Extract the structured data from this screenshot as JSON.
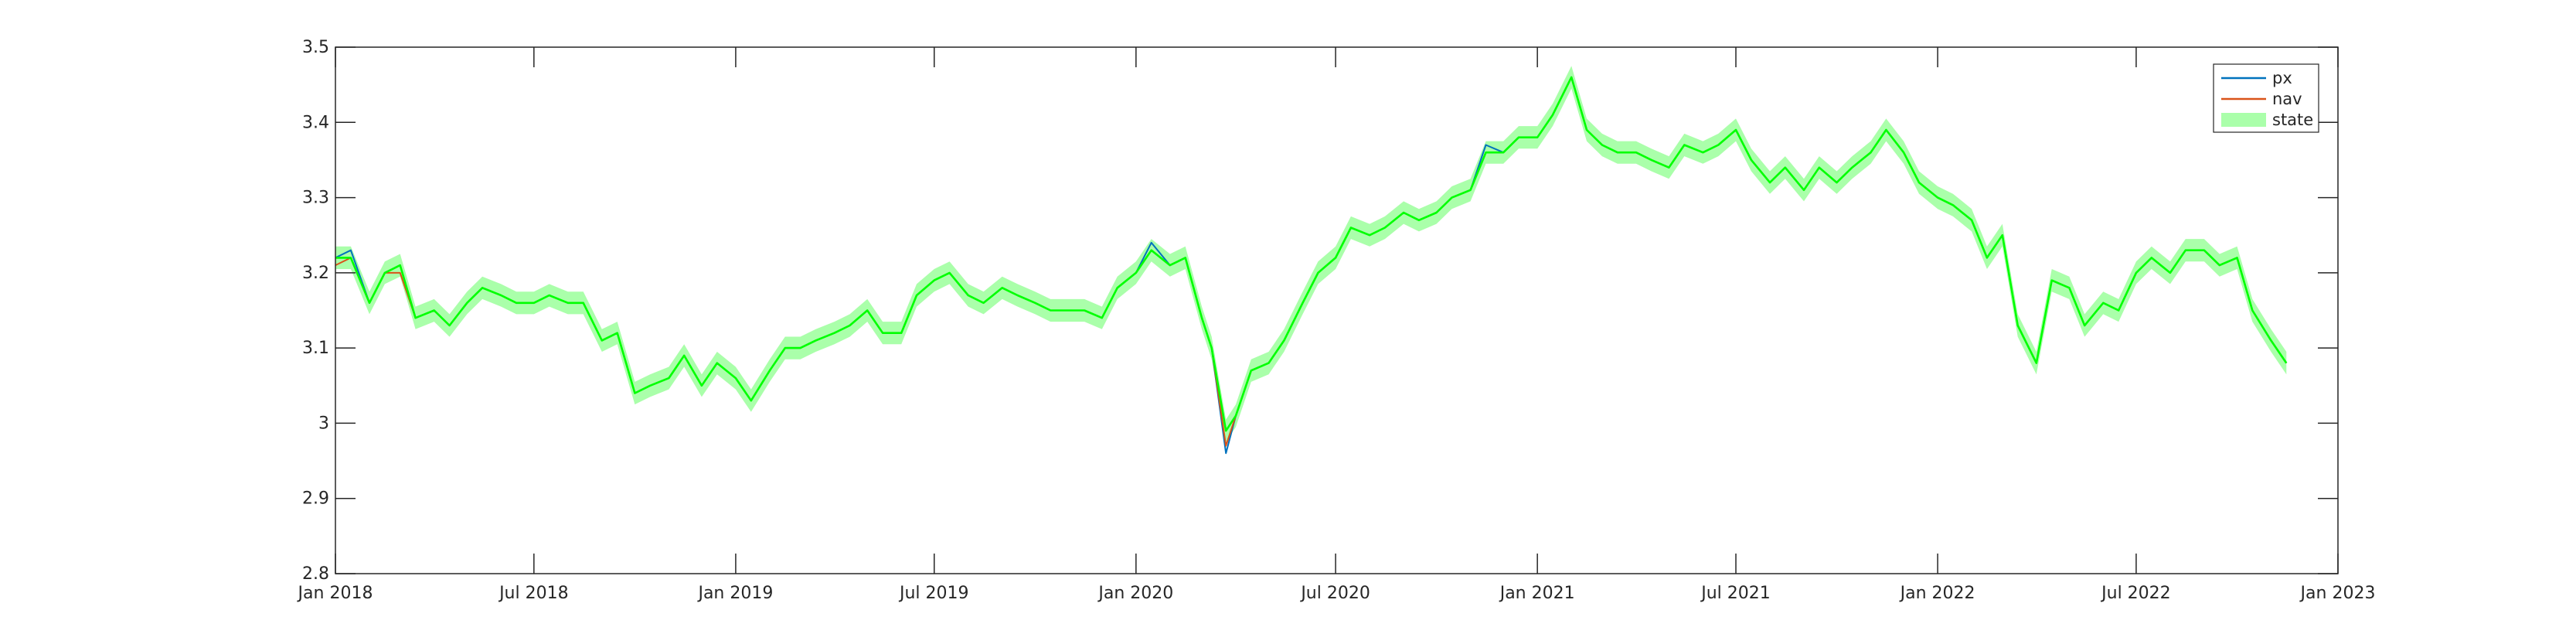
{
  "chart_data": {
    "type": "line",
    "title": "",
    "xlabel": "",
    "ylabel": "",
    "xlim": [
      "2018-01-01",
      "2023-01-01"
    ],
    "ylim": [
      2.8,
      3.5
    ],
    "x_ticks": [
      "2018-01-01",
      "2018-07-01",
      "2019-01-01",
      "2019-07-01",
      "2020-01-01",
      "2020-07-01",
      "2021-01-01",
      "2021-07-01",
      "2022-01-01",
      "2022-07-01",
      "2023-01-01"
    ],
    "x_tick_labels": [
      "Jan 2018",
      "Jul 2018",
      "Jan 2019",
      "Jul 2019",
      "Jan 2020",
      "Jul 2020",
      "Jan 2021",
      "Jul 2021",
      "Jan 2022",
      "Jul 2022",
      "Jan 2023"
    ],
    "y_ticks": [
      2.8,
      2.9,
      3.0,
      3.1,
      3.2,
      3.3,
      3.4,
      3.5
    ],
    "y_tick_labels": [
      "2.8",
      "2.9",
      "3",
      "3.1",
      "3.2",
      "3.3",
      "3.4",
      "3.5"
    ],
    "grid": false,
    "legend_position": "top-right",
    "band_half_width": 0.015,
    "x": [
      "2018-01-01",
      "2018-01-15",
      "2018-02-01",
      "2018-02-15",
      "2018-03-01",
      "2018-03-15",
      "2018-04-01",
      "2018-04-15",
      "2018-05-01",
      "2018-05-15",
      "2018-06-01",
      "2018-06-15",
      "2018-07-01",
      "2018-07-15",
      "2018-08-01",
      "2018-08-15",
      "2018-09-01",
      "2018-09-15",
      "2018-10-01",
      "2018-10-15",
      "2018-11-01",
      "2018-11-15",
      "2018-12-01",
      "2018-12-15",
      "2019-01-01",
      "2019-01-15",
      "2019-02-01",
      "2019-02-15",
      "2019-03-01",
      "2019-03-15",
      "2019-04-01",
      "2019-04-15",
      "2019-05-01",
      "2019-05-15",
      "2019-06-01",
      "2019-06-15",
      "2019-07-01",
      "2019-07-15",
      "2019-08-01",
      "2019-08-15",
      "2019-09-01",
      "2019-09-15",
      "2019-10-01",
      "2019-10-15",
      "2019-11-01",
      "2019-11-15",
      "2019-12-01",
      "2019-12-15",
      "2020-01-01",
      "2020-01-15",
      "2020-02-01",
      "2020-02-15",
      "2020-03-01",
      "2020-03-10",
      "2020-03-23",
      "2020-04-01",
      "2020-04-15",
      "2020-05-01",
      "2020-05-15",
      "2020-06-01",
      "2020-06-15",
      "2020-07-01",
      "2020-07-15",
      "2020-08-01",
      "2020-08-15",
      "2020-09-01",
      "2020-09-15",
      "2020-10-01",
      "2020-10-15",
      "2020-11-01",
      "2020-11-15",
      "2020-12-01",
      "2020-12-15",
      "2021-01-01",
      "2021-01-15",
      "2021-02-01",
      "2021-02-15",
      "2021-03-01",
      "2021-03-15",
      "2021-04-01",
      "2021-04-15",
      "2021-05-01",
      "2021-05-15",
      "2021-06-01",
      "2021-06-15",
      "2021-07-01",
      "2021-07-15",
      "2021-08-01",
      "2021-08-15",
      "2021-09-01",
      "2021-09-15",
      "2021-10-01",
      "2021-10-15",
      "2021-11-01",
      "2021-11-15",
      "2021-12-01",
      "2021-12-15",
      "2022-01-01",
      "2022-01-15",
      "2022-02-01",
      "2022-02-15",
      "2022-03-01",
      "2022-03-15",
      "2022-04-01",
      "2022-04-15",
      "2022-05-01",
      "2022-05-15",
      "2022-06-01",
      "2022-06-15",
      "2022-07-01",
      "2022-07-15",
      "2022-08-01",
      "2022-08-15",
      "2022-09-01",
      "2022-09-15",
      "2022-10-01",
      "2022-10-15",
      "2022-11-01",
      "2022-11-15"
    ],
    "series": [
      {
        "name": "px",
        "color": "#0072BD",
        "values": [
          3.22,
          3.23,
          3.16,
          3.2,
          3.21,
          3.14,
          3.15,
          3.13,
          3.16,
          3.18,
          3.17,
          3.16,
          3.16,
          3.17,
          3.16,
          3.16,
          3.11,
          3.12,
          3.04,
          3.05,
          3.06,
          3.09,
          3.05,
          3.08,
          3.06,
          3.03,
          3.07,
          3.1,
          3.1,
          3.11,
          3.12,
          3.13,
          3.15,
          3.12,
          3.12,
          3.17,
          3.19,
          3.2,
          3.17,
          3.16,
          3.18,
          3.17,
          3.16,
          3.15,
          3.15,
          3.15,
          3.14,
          3.18,
          3.2,
          3.24,
          3.21,
          3.22,
          3.14,
          3.1,
          2.96,
          3.01,
          3.07,
          3.08,
          3.11,
          3.16,
          3.2,
          3.22,
          3.26,
          3.25,
          3.26,
          3.28,
          3.27,
          3.28,
          3.3,
          3.31,
          3.37,
          3.36,
          3.38,
          3.38,
          3.41,
          3.46,
          3.39,
          3.37,
          3.36,
          3.36,
          3.35,
          3.34,
          3.37,
          3.36,
          3.37,
          3.39,
          3.35,
          3.32,
          3.34,
          3.31,
          3.34,
          3.32,
          3.34,
          3.36,
          3.39,
          3.36,
          3.32,
          3.3,
          3.29,
          3.27,
          3.22,
          3.25,
          3.13,
          3.08,
          3.19,
          3.18,
          3.13,
          3.16,
          3.15,
          3.2,
          3.22,
          3.2,
          3.23,
          3.23,
          3.21,
          3.22,
          3.15,
          3.11,
          3.08
        ]
      },
      {
        "name": "nav",
        "color": "#D95319",
        "values": [
          3.21,
          3.22,
          3.16,
          3.2,
          3.2,
          3.14,
          3.15,
          3.13,
          3.16,
          3.18,
          3.17,
          3.16,
          3.16,
          3.17,
          3.16,
          3.16,
          3.11,
          3.12,
          3.04,
          3.05,
          3.06,
          3.09,
          3.05,
          3.08,
          3.06,
          3.03,
          3.07,
          3.1,
          3.1,
          3.11,
          3.12,
          3.13,
          3.15,
          3.12,
          3.12,
          3.17,
          3.19,
          3.2,
          3.17,
          3.16,
          3.18,
          3.17,
          3.16,
          3.15,
          3.15,
          3.15,
          3.14,
          3.18,
          3.2,
          3.23,
          3.21,
          3.22,
          3.14,
          3.1,
          2.97,
          3.01,
          3.07,
          3.08,
          3.11,
          3.16,
          3.2,
          3.22,
          3.26,
          3.25,
          3.26,
          3.28,
          3.27,
          3.28,
          3.3,
          3.31,
          3.36,
          3.36,
          3.38,
          3.38,
          3.41,
          3.46,
          3.39,
          3.37,
          3.36,
          3.36,
          3.35,
          3.34,
          3.37,
          3.36,
          3.37,
          3.39,
          3.35,
          3.32,
          3.34,
          3.31,
          3.34,
          3.32,
          3.34,
          3.36,
          3.39,
          3.36,
          3.32,
          3.3,
          3.29,
          3.27,
          3.22,
          3.25,
          3.13,
          3.08,
          3.19,
          3.18,
          3.13,
          3.16,
          3.15,
          3.2,
          3.22,
          3.2,
          3.23,
          3.23,
          3.21,
          3.22,
          3.15,
          3.11,
          3.08
        ]
      },
      {
        "name": "state",
        "color": "#00FF00",
        "band_color": "#aaffaa",
        "values": [
          3.22,
          3.22,
          3.16,
          3.2,
          3.21,
          3.14,
          3.15,
          3.13,
          3.16,
          3.18,
          3.17,
          3.16,
          3.16,
          3.17,
          3.16,
          3.16,
          3.11,
          3.12,
          3.04,
          3.05,
          3.06,
          3.09,
          3.05,
          3.08,
          3.06,
          3.03,
          3.07,
          3.1,
          3.1,
          3.11,
          3.12,
          3.13,
          3.15,
          3.12,
          3.12,
          3.17,
          3.19,
          3.2,
          3.17,
          3.16,
          3.18,
          3.17,
          3.16,
          3.15,
          3.15,
          3.15,
          3.14,
          3.18,
          3.2,
          3.23,
          3.21,
          3.22,
          3.14,
          3.1,
          2.99,
          3.01,
          3.07,
          3.08,
          3.11,
          3.16,
          3.2,
          3.22,
          3.26,
          3.25,
          3.26,
          3.28,
          3.27,
          3.28,
          3.3,
          3.31,
          3.36,
          3.36,
          3.38,
          3.38,
          3.41,
          3.46,
          3.39,
          3.37,
          3.36,
          3.36,
          3.35,
          3.34,
          3.37,
          3.36,
          3.37,
          3.39,
          3.35,
          3.32,
          3.34,
          3.31,
          3.34,
          3.32,
          3.34,
          3.36,
          3.39,
          3.36,
          3.32,
          3.3,
          3.29,
          3.27,
          3.22,
          3.25,
          3.13,
          3.08,
          3.19,
          3.18,
          3.13,
          3.16,
          3.15,
          3.2,
          3.22,
          3.2,
          3.23,
          3.23,
          3.21,
          3.22,
          3.15,
          3.11,
          3.08
        ]
      }
    ]
  }
}
